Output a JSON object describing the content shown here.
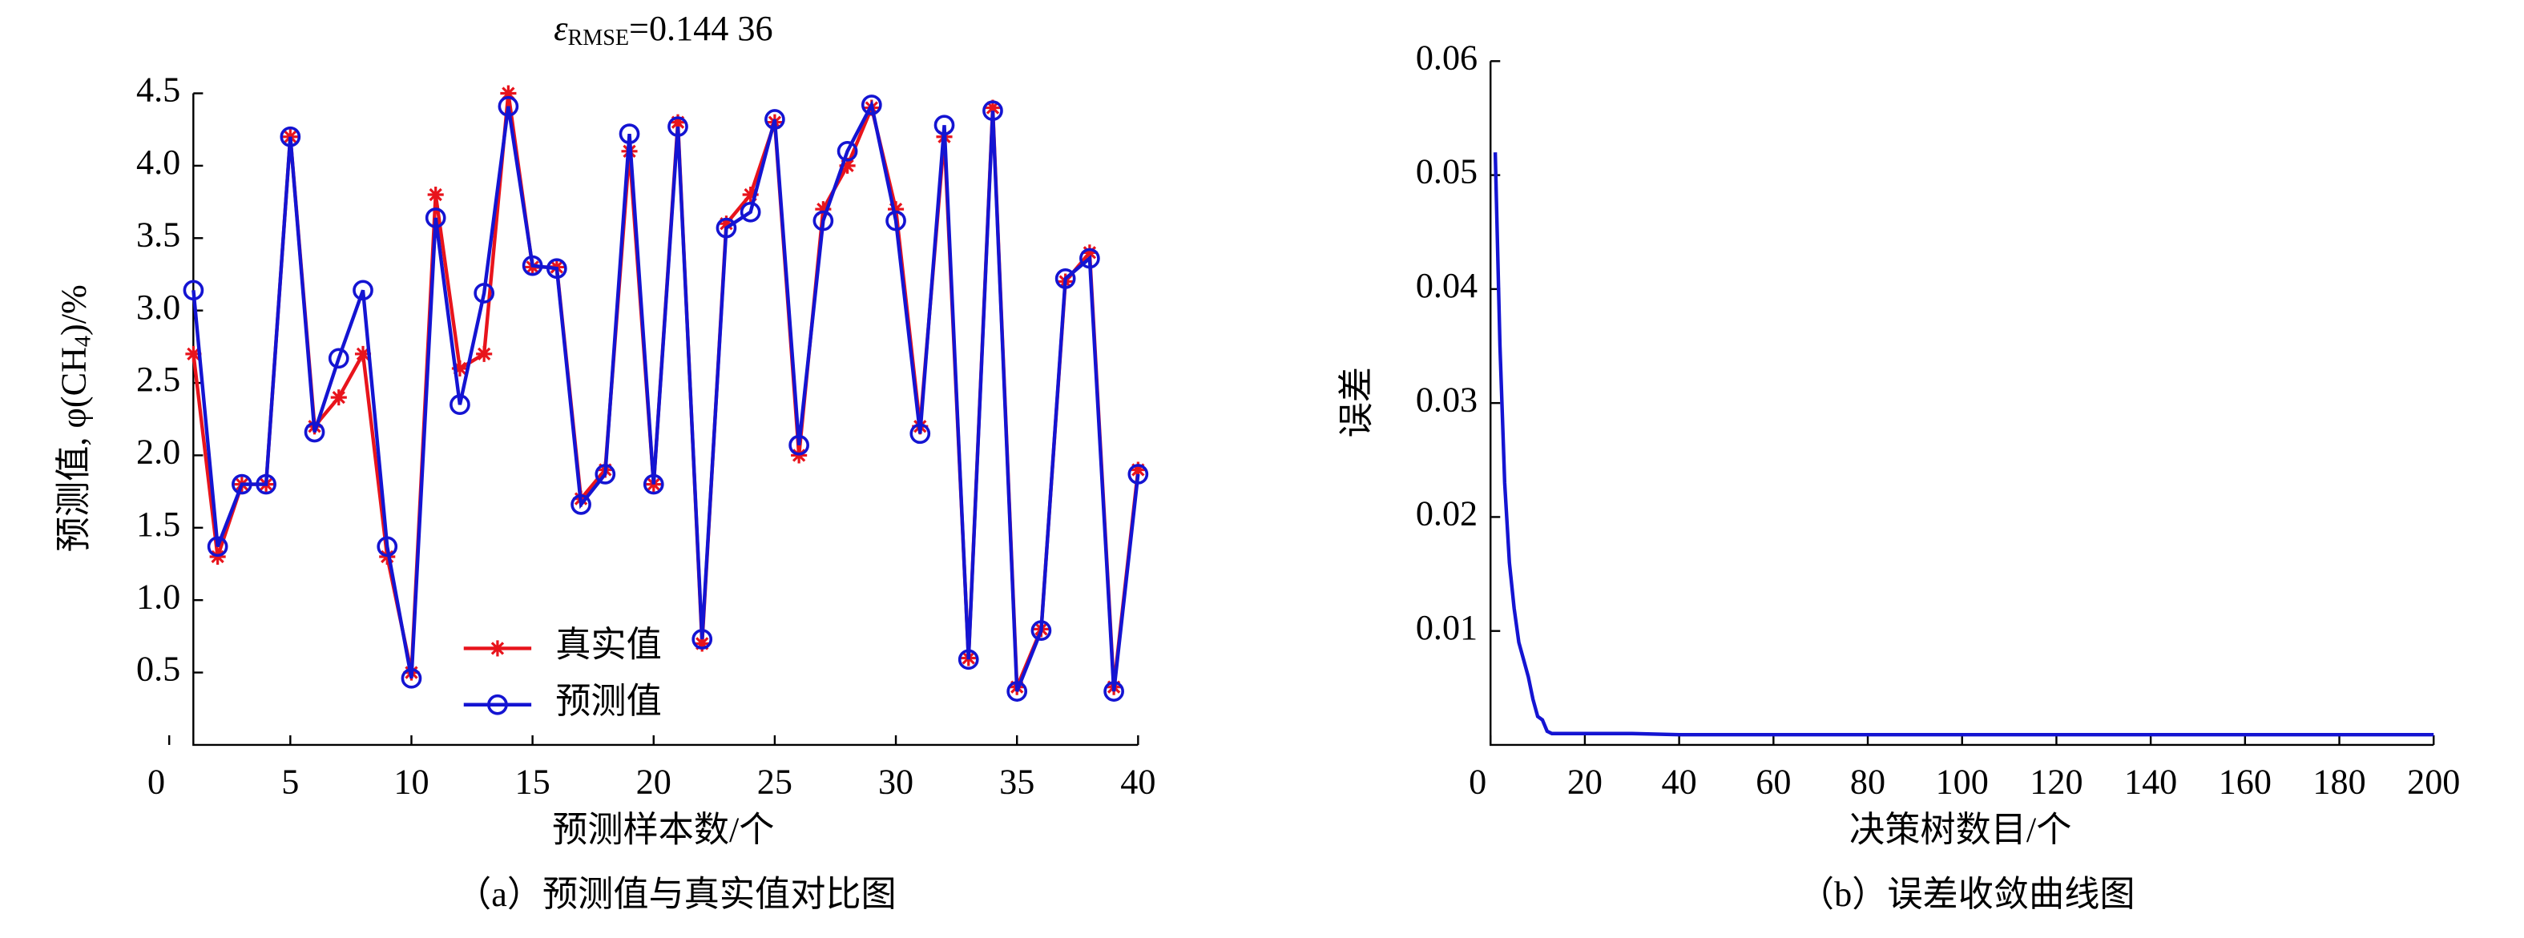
{
  "chart_data": [
    {
      "type": "line",
      "title_parts": [
        "ε",
        "RMSE",
        "=0.144 36"
      ],
      "ylabel_parts": [
        "预测值, φ(CH",
        "4",
        ")/%"
      ],
      "xlabel": "预测样本数/个",
      "caption": "（a）预测值与真实值对比图",
      "x": [
        1,
        2,
        3,
        4,
        5,
        6,
        7,
        8,
        9,
        10,
        11,
        12,
        13,
        14,
        15,
        16,
        17,
        18,
        19,
        20,
        21,
        22,
        23,
        24,
        25,
        26,
        27,
        28,
        29,
        30,
        31,
        32,
        33,
        34,
        35,
        36,
        37,
        38,
        39,
        40
      ],
      "series": [
        {
          "name": "真实值",
          "color": "#e8141c",
          "marker": "star",
          "values": [
            2.7,
            1.3,
            1.8,
            1.8,
            4.2,
            2.2,
            2.4,
            2.7,
            1.3,
            0.5,
            3.8,
            2.6,
            2.7,
            4.5,
            3.3,
            3.3,
            1.7,
            1.9,
            4.1,
            1.8,
            4.3,
            0.7,
            3.6,
            3.8,
            4.3,
            2.0,
            3.7,
            4.0,
            4.4,
            3.7,
            2.2,
            4.2,
            0.6,
            4.4,
            0.4,
            0.8,
            3.2,
            3.4,
            0.4,
            1.9
          ]
        },
        {
          "name": "预测值",
          "color": "#1414d2",
          "marker": "circle",
          "values": [
            3.14,
            1.37,
            1.8,
            1.8,
            4.2,
            2.16,
            2.67,
            3.14,
            1.37,
            0.46,
            3.64,
            2.35,
            3.12,
            4.41,
            3.31,
            3.29,
            1.66,
            1.87,
            4.22,
            1.8,
            4.27,
            0.73,
            3.57,
            3.68,
            4.32,
            2.07,
            3.62,
            4.1,
            4.42,
            3.62,
            2.15,
            4.28,
            0.59,
            4.38,
            0.37,
            0.79,
            3.22,
            3.36,
            0.37,
            1.87
          ]
        }
      ],
      "xlim": [
        0,
        40
      ],
      "xticks": [
        0,
        5,
        10,
        15,
        20,
        25,
        30,
        35,
        40
      ],
      "ylim": [
        0,
        4.5
      ],
      "yticks": [
        0.5,
        {
          "value": 1,
          "label": "1.0"
        },
        1.5,
        {
          "value": 2,
          "label": "2.0"
        },
        2.5,
        {
          "value": 3,
          "label": "3.0"
        },
        3.5,
        {
          "value": 4,
          "label": "4.0"
        },
        4.5
      ],
      "legend": "lower-left"
    },
    {
      "type": "line",
      "ylabel_parts": [
        "误差"
      ],
      "xlabel": "决策树数目/个",
      "caption": "（b）误差收敛曲线图",
      "x": [
        1,
        2,
        3,
        4,
        5,
        6,
        7,
        8,
        9,
        10,
        11,
        12,
        13,
        14,
        15,
        20,
        30,
        40,
        50,
        60,
        70,
        80,
        90,
        100,
        110,
        120,
        130,
        140,
        150,
        160,
        170,
        180,
        190,
        200
      ],
      "series": [
        {
          "color": "#1414d2",
          "values": [
            0.052,
            0.035,
            0.023,
            0.016,
            0.012,
            0.009,
            0.0075,
            0.006,
            0.004,
            0.0025,
            0.0022,
            0.0012,
            0.001,
            0.001,
            0.001,
            0.001,
            0.001,
            0.0009,
            0.0009,
            0.0009,
            0.0009,
            0.0009,
            0.0009,
            0.0009,
            0.0009,
            0.0009,
            0.0009,
            0.0009,
            0.0009,
            0.0009,
            0.0009,
            0.0009,
            0.0009,
            0.0009
          ]
        }
      ],
      "xlim": [
        0,
        200
      ],
      "xticks": [
        0,
        20,
        40,
        60,
        80,
        100,
        120,
        140,
        160,
        180,
        200
      ],
      "ylim": [
        0,
        0.06
      ],
      "yticks": [
        0.01,
        0.02,
        0.03,
        0.04,
        0.05,
        0.06
      ]
    }
  ]
}
